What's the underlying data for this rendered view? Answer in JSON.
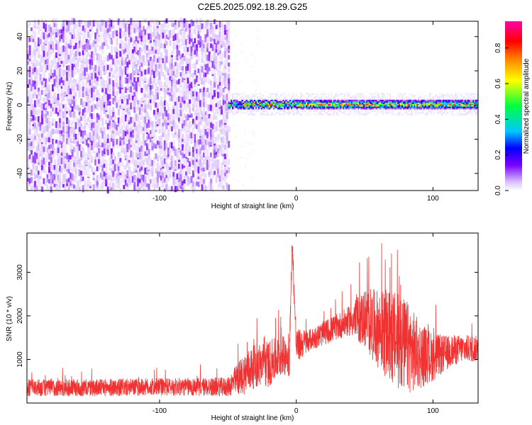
{
  "title": "C2E5.2025.092.18.29.G25",
  "chart_data": [
    {
      "type": "heatmap",
      "name": "spectrogram",
      "xlabel": "Height of straight line (km)",
      "ylabel": "Frequency (Hz)",
      "xlim": [
        -197,
        133
      ],
      "ylim": [
        -50,
        49
      ],
      "xticks": [
        -100,
        0,
        100
      ],
      "yticks": [
        -40,
        -20,
        0,
        20,
        40
      ],
      "colorbar": {
        "label": "Normalized spectral amplitude",
        "range": [
          0,
          0.95
        ],
        "ticks": [
          0.0,
          0.2,
          0.4,
          0.6,
          0.8
        ],
        "colormap": [
          "#ffffff",
          "#d9c2ff",
          "#7a00ff",
          "#0000ff",
          "#00c8ff",
          "#00ff40",
          "#ffff00",
          "#ff7f00",
          "#ff0000",
          "#ff00ff"
        ]
      },
      "regions": [
        {
          "x_range": [
            -197,
            -50
          ],
          "description_level": "broadband noise",
          "amplitude": [
            0.0,
            0.2
          ]
        },
        {
          "x_range": [
            -50,
            133
          ],
          "freq_center": 0,
          "freq_halfwidth": 2,
          "amplitude": [
            0.4,
            0.95
          ]
        }
      ]
    },
    {
      "type": "line",
      "name": "snr",
      "xlabel": "Height of straight line (km)",
      "ylabel": "SNR (10 * v/v)",
      "xlim": [
        -197,
        133
      ],
      "ylim": [
        0,
        3900
      ],
      "xticks": [
        -100,
        0,
        100
      ],
      "yticks": [
        1000,
        2000,
        3000
      ],
      "color": "#f03232",
      "profile_x": [
        -197,
        -150,
        -100,
        -50,
        -37,
        -30,
        -20,
        -10,
        -5,
        -3,
        0,
        10,
        20,
        30,
        40,
        50,
        60,
        70,
        80,
        90,
        100,
        110,
        120,
        133
      ],
      "profile_y": [
        350,
        350,
        370,
        370,
        700,
        850,
        900,
        1100,
        1050,
        3700,
        1300,
        1450,
        1600,
        1750,
        1900,
        1950,
        1700,
        1500,
        1300,
        1100,
        1050,
        1150,
        1250,
        1250
      ],
      "spread_y": [
        200,
        200,
        200,
        220,
        500,
        500,
        550,
        450,
        450,
        200,
        400,
        250,
        280,
        300,
        350,
        700,
        900,
        1100,
        1100,
        800,
        550,
        400,
        320,
        300
      ]
    }
  ]
}
